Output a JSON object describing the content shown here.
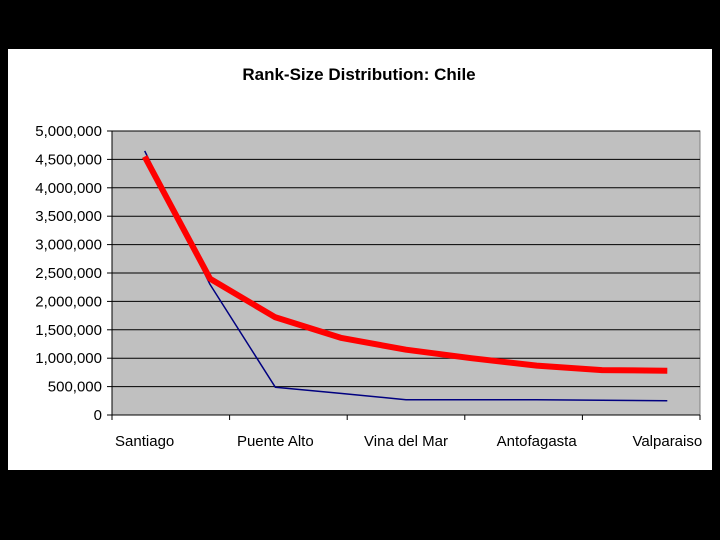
{
  "chart_data": {
    "type": "line",
    "title": "Rank-Size Distribution: Chile",
    "xlabel": "",
    "ylabel": "",
    "categories": [
      "Santiago",
      "Puente Alto",
      "Vina del Mar",
      "Antofagasta",
      "Valparaiso"
    ],
    "x": [
      1,
      2,
      3,
      4,
      5,
      6,
      7,
      8,
      9
    ],
    "ylim": [
      0,
      5000000
    ],
    "yticks": [
      0,
      500000,
      1000000,
      1500000,
      2000000,
      2500000,
      3000000,
      3500000,
      4000000,
      4500000,
      5000000
    ],
    "ytick_labels": [
      "0",
      "500,000",
      "1,000,000",
      "1,500,000",
      "2,000,000",
      "2,500,000",
      "3,000,000",
      "3,500,000",
      "4,000,000",
      "4,500,000",
      "5,000,000"
    ],
    "grid": true,
    "plot_background": "#c0c0c0",
    "series": [
      {
        "color": "#000080",
        "values": [
          4650000,
          2300000,
          490000,
          380000,
          270000,
          270000,
          270000,
          260000,
          250000
        ]
      },
      {
        "color": "#ff0000",
        "values": [
          4550000,
          2400000,
          1720000,
          1360000,
          1150000,
          1000000,
          870000,
          790000,
          780000
        ]
      }
    ]
  }
}
